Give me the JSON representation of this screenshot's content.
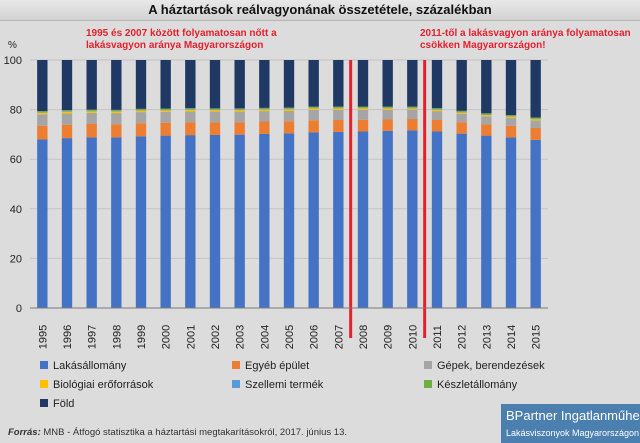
{
  "title": "A háztartások reálvagyonának összetétele, százalékban",
  "annotations": {
    "left": [
      "1995 és 2007 között folyamatosan nőtt a",
      "lakásvagyon aránya Magyarországon"
    ],
    "right": [
      "2011-től a lakásvagyon aránya folyamatosan",
      "csökken Magyarországon!"
    ]
  },
  "source": {
    "label": "Forrás:",
    "text": " MNB - Átfogó statisztika a háztartási megtakarításokról, 2017. június 13."
  },
  "brand": {
    "name": "BPartner Ingatlanműhely",
    "tagline": "Lakásviszonyok Magyarországon"
  },
  "chart_data": {
    "type": "bar",
    "stacked": true,
    "ylabel": "%",
    "ylim": [
      0,
      100
    ],
    "yticks": [
      0,
      20,
      40,
      60,
      80,
      100
    ],
    "grid": true,
    "legend_position": "bottom",
    "categories": [
      "1995",
      "1996",
      "1997",
      "1998",
      "1999",
      "2000",
      "2001",
      "2002",
      "2003",
      "2004",
      "2005",
      "2006",
      "2007",
      "2008",
      "2009",
      "2010",
      "2011",
      "2012",
      "2013",
      "2014",
      "2015"
    ],
    "highlight_after_categories": [
      "2007",
      "2010"
    ],
    "highlight_color": "#e5202e",
    "series": [
      {
        "name": "Lakásállomány",
        "color": "#4472c4",
        "values": [
          68,
          68.5,
          68.8,
          68.8,
          69.2,
          69.5,
          69.7,
          69.8,
          69.9,
          70.2,
          70.4,
          70.8,
          71,
          71.2,
          71.4,
          71.6,
          71.2,
          70.3,
          69.5,
          68.8,
          67.8
        ]
      },
      {
        "name": "Egyéb épület",
        "color": "#ed7d31",
        "values": [
          5.5,
          5.4,
          5.4,
          5.3,
          5.3,
          5.2,
          5.2,
          5.1,
          5,
          5,
          4.9,
          4.9,
          4.8,
          4.7,
          4.6,
          4.6,
          4.6,
          4.6,
          4.6,
          4.7,
          4.8
        ]
      },
      {
        "name": "Gépek, berendezések",
        "color": "#a5a5a5",
        "values": [
          4.6,
          4.6,
          4.5,
          4.5,
          4.5,
          4.4,
          4.4,
          4.3,
          4.3,
          4.2,
          4.2,
          4.2,
          4.1,
          4,
          3.9,
          3.8,
          3.6,
          3.4,
          3.2,
          3.1,
          3
        ]
      },
      {
        "name": "Biológiai erőforrások",
        "color": "#ffc000",
        "values": [
          0.6,
          0.6,
          0.6,
          0.6,
          0.6,
          0.6,
          0.6,
          0.6,
          0.6,
          0.6,
          0.6,
          0.6,
          0.6,
          0.6,
          0.6,
          0.5,
          0.5,
          0.5,
          0.5,
          0.5,
          0.5
        ]
      },
      {
        "name": "Szellemi termék",
        "color": "#5b9bd5",
        "values": [
          0.2,
          0.2,
          0.2,
          0.2,
          0.2,
          0.2,
          0.2,
          0.2,
          0.2,
          0.2,
          0.2,
          0.2,
          0.2,
          0.2,
          0.2,
          0.2,
          0.2,
          0.2,
          0.2,
          0.2,
          0.2
        ]
      },
      {
        "name": "Készletállomány",
        "color": "#70ad47",
        "values": [
          0.5,
          0.5,
          0.5,
          0.5,
          0.5,
          0.5,
          0.5,
          0.5,
          0.5,
          0.5,
          0.5,
          0.5,
          0.5,
          0.5,
          0.5,
          0.5,
          0.5,
          0.5,
          0.5,
          0.5,
          0.5
        ]
      },
      {
        "name": "Föld",
        "color": "#1f3864",
        "values": [
          20.6,
          20.2,
          20,
          20.1,
          19.7,
          19.6,
          19.4,
          19.5,
          19.5,
          19.3,
          19.2,
          18.8,
          18.8,
          18.8,
          18.8,
          18.8,
          19.4,
          20.5,
          21.5,
          22.2,
          23.2
        ]
      }
    ]
  }
}
